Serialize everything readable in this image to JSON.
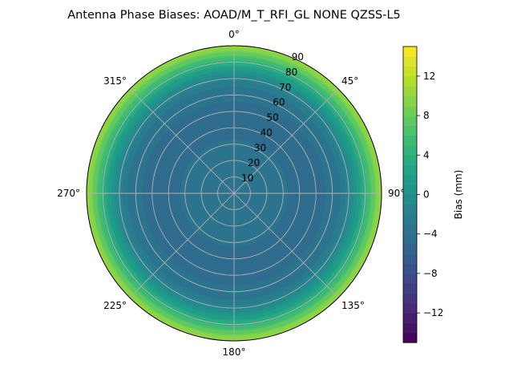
{
  "chart_data": {
    "type": "heatmap",
    "projection": "polar",
    "title": "Antenna Phase Biases: AOAD/M_T_RFI_GL NONE QZSS-L5",
    "theta_direction": "clockwise",
    "theta_zero_location": "top",
    "theta_ticks": [
      {
        "deg": 0,
        "label": "0°"
      },
      {
        "deg": 45,
        "label": "45°"
      },
      {
        "deg": 90,
        "label": "90°"
      },
      {
        "deg": 135,
        "label": "135°"
      },
      {
        "deg": 180,
        "label": "180°"
      },
      {
        "deg": 225,
        "label": "225°"
      },
      {
        "deg": 270,
        "label": "270°"
      },
      {
        "deg": 315,
        "label": "315°"
      }
    ],
    "r_ticks": [
      10,
      20,
      30,
      40,
      50,
      60,
      70,
      80,
      90
    ],
    "r_tick_labels": [
      "10",
      "20",
      "30",
      "40",
      "50",
      "60",
      "70",
      "80",
      "90"
    ],
    "r_range": [
      0,
      90
    ],
    "grid": true,
    "colormap": "viridis",
    "bias_profile_mm_by_radius": [
      {
        "r": 0,
        "bias": -3.0
      },
      {
        "r": 10,
        "bias": -3.2
      },
      {
        "r": 20,
        "bias": -3.6
      },
      {
        "r": 30,
        "bias": -3.9
      },
      {
        "r": 40,
        "bias": -4.2
      },
      {
        "r": 50,
        "bias": -4.3
      },
      {
        "r": 60,
        "bias": -3.8
      },
      {
        "r": 65,
        "bias": -3.0
      },
      {
        "r": 70,
        "bias": -1.5
      },
      {
        "r": 75,
        "bias": 1.0
      },
      {
        "r": 80,
        "bias": 4.0
      },
      {
        "r": 85,
        "bias": 7.5
      },
      {
        "r": 90,
        "bias": 11.0
      }
    ],
    "colorbar": {
      "label": "Bias (mm)",
      "vmin": -15,
      "vmax": 15,
      "levels": 30,
      "ticks": [
        -12,
        -8,
        -4,
        0,
        4,
        8,
        12
      ],
      "tick_labels": [
        "−12",
        "−8",
        "−4",
        "0",
        "4",
        "8",
        "12"
      ]
    }
  }
}
